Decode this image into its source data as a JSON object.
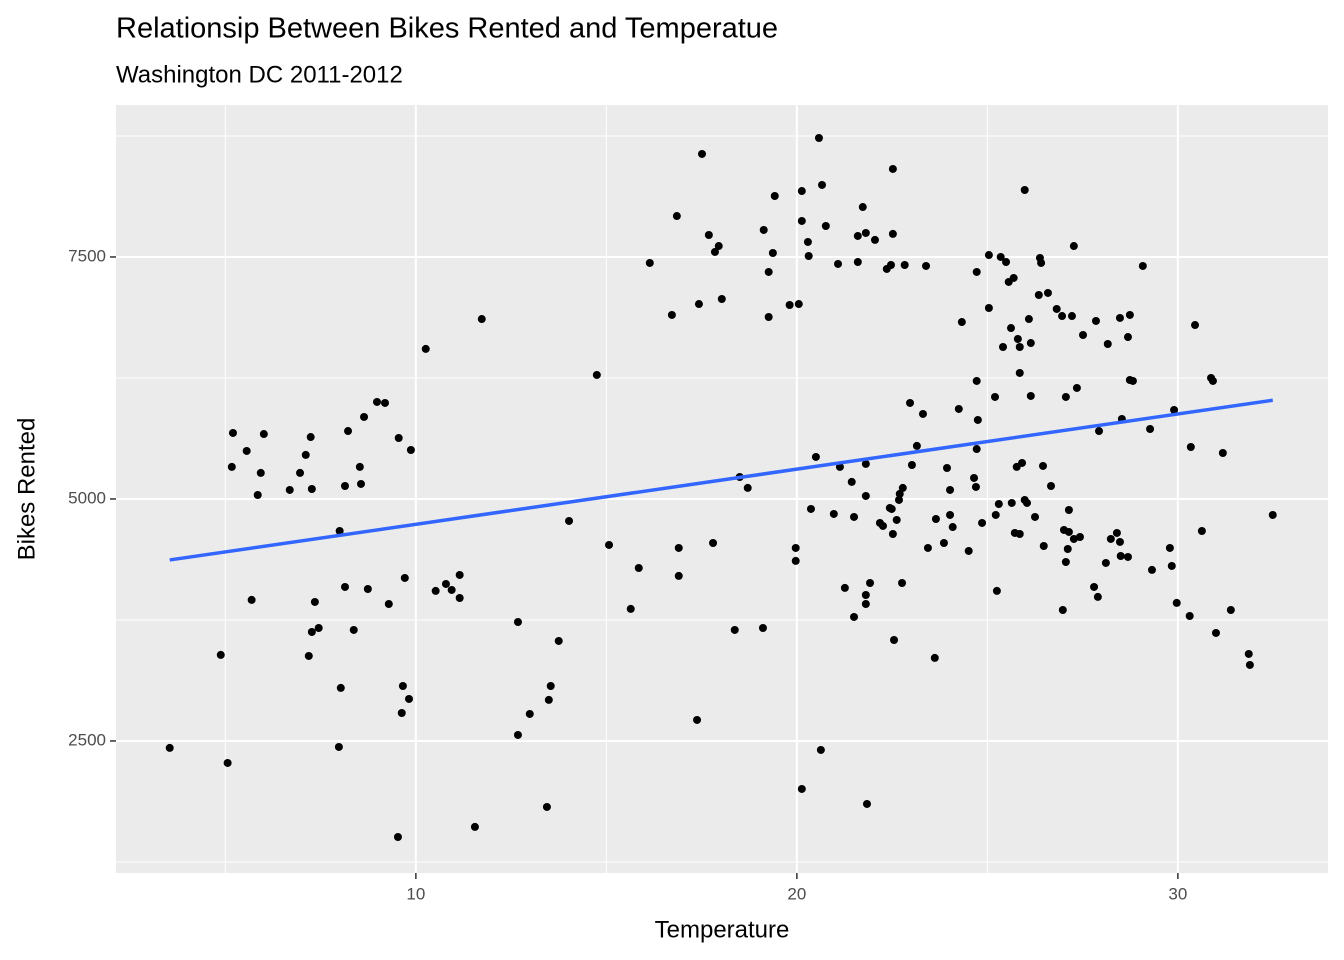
{
  "chart_data": {
    "type": "scatter",
    "title": "Relationsip Between Bikes Rented and Temperatue",
    "subtitle": "Washington DC 2011-2012",
    "x_label": "Temperature",
    "y_label": "Bikes Rented",
    "xlim": [
      2.13,
      33.94
    ],
    "ylim": [
      1136,
      9070
    ],
    "xticks": [
      10,
      20,
      30
    ],
    "yticks": [
      2500,
      5000,
      7500
    ],
    "grid": true,
    "minor_grid": true,
    "color": "#000000",
    "x": [
      3.54,
      4.88,
      5.06,
      5.2,
      5.17,
      5.56,
      5.69,
      5.85,
      5.93,
      6.01,
      6.69,
      6.96,
      7.11,
      7.19,
      7.24,
      7.27,
      7.27,
      7.35,
      7.45,
      8.0,
      8.03,
      7.98,
      8.14,
      8.14,
      8.22,
      8.37,
      8.53,
      8.56,
      8.64,
      8.74,
      8.98,
      9.19,
      9.29,
      9.53,
      9.55,
      9.63,
      9.66,
      9.71,
      9.82,
      9.87,
      10.26,
      10.52,
      10.79,
      10.94,
      11.15,
      11.15,
      11.55,
      11.73,
      12.68,
      12.68,
      12.99,
      13.44,
      13.49,
      13.54,
      13.75,
      14.02,
      14.75,
      15.07,
      15.64,
      15.85,
      16.14,
      16.72,
      16.85,
      16.9,
      16.9,
      17.38,
      17.43,
      17.51,
      17.69,
      17.8,
      17.85,
      17.95,
      18.03,
      18.37,
      18.5,
      18.71,
      19.11,
      19.13,
      19.26,
      19.26,
      19.37,
      19.42,
      19.81,
      19.97,
      19.97,
      20.05,
      20.13,
      20.13,
      20.13,
      20.29,
      20.31,
      20.37,
      20.5,
      20.58,
      20.63,
      20.66,
      20.76,
      20.97,
      21.08,
      21.13,
      21.26,
      21.44,
      21.5,
      21.5,
      21.6,
      21.6,
      21.73,
      21.81,
      21.81,
      21.81,
      21.81,
      21.81,
      21.84,
      21.92,
      22.05,
      22.18,
      22.26,
      22.36,
      22.44,
      22.47,
      22.49,
      22.52,
      22.52,
      22.52,
      22.55,
      22.62,
      22.68,
      22.7,
      22.76,
      22.78,
      22.83,
      22.97,
      23.02,
      23.15,
      23.31,
      23.39,
      23.44,
      23.62,
      23.65,
      23.86,
      23.94,
      24.02,
      24.02,
      24.09,
      24.25,
      24.33,
      24.51,
      24.65,
      24.7,
      24.72,
      24.72,
      24.72,
      24.75,
      24.86,
      25.04,
      25.04,
      25.2,
      25.22,
      25.25,
      25.3,
      25.35,
      25.41,
      25.49,
      25.56,
      25.62,
      25.64,
      25.69,
      25.72,
      25.77,
      25.8,
      25.85,
      25.85,
      25.85,
      25.91,
      25.98,
      25.98,
      26.04,
      26.09,
      26.14,
      26.14,
      26.25,
      26.35,
      26.38,
      26.41,
      26.46,
      26.48,
      26.59,
      26.67,
      26.82,
      26.96,
      26.98,
      27.01,
      27.06,
      27.06,
      27.11,
      27.14,
      27.14,
      27.22,
      27.27,
      27.27,
      27.35,
      27.43,
      27.51,
      27.8,
      27.85,
      27.9,
      27.93,
      28.11,
      28.16,
      28.24,
      28.4,
      28.48,
      28.48,
      28.5,
      28.53,
      28.69,
      28.69,
      28.74,
      28.74,
      28.82,
      29.08,
      29.27,
      29.32,
      29.79,
      29.84,
      29.9,
      29.97,
      30.31,
      30.34,
      30.45,
      30.63,
      30.87,
      30.92,
      31.0,
      31.18,
      31.39,
      31.86,
      31.89,
      32.49
    ],
    "y": [
      2428,
      3389,
      2273,
      5682,
      5331,
      5496,
      3957,
      5041,
      5269,
      5671,
      5093,
      5269,
      5455,
      3378,
      5640,
      5103,
      3626,
      3936,
      3667,
      4669,
      3048,
      2438,
      5134,
      4091,
      5702,
      3647,
      5331,
      5155,
      5847,
      4070,
      6002,
      5992,
      3915,
      1508,
      5630,
      2789,
      3068,
      4184,
      2934,
      5506,
      6550,
      4050,
      4122,
      4060,
      4215,
      3977,
      1612,
      6859,
      3729,
      2562,
      2779,
      1818,
      2924,
      3068,
      3533,
      4773,
      6281,
      4525,
      3864,
      4287,
      7438,
      6901,
      7923,
      4494,
      4205,
      2717,
      7014,
      8564,
      7727,
      4545,
      7552,
      7613,
      7066,
      3647,
      5227,
      5114,
      3667,
      7779,
      7345,
      6880,
      7541,
      8130,
      7004,
      4494,
      4360,
      7014,
      8181,
      7872,
      2004,
      7655,
      7510,
      4897,
      5434,
      8729,
      2407,
      8244,
      7820,
      4845,
      7428,
      5331,
      4081,
      5176,
      3781,
      4814,
      7448,
      7717,
      8016,
      5362,
      5031,
      4008,
      3915,
      7748,
      1849,
      4132,
      7676,
      4752,
      4721,
      7376,
      4907,
      7417,
      4897,
      8409,
      7738,
      4638,
      3543,
      4783,
      4990,
      5052,
      4132,
      5114,
      7417,
      5992,
      5351,
      5548,
      5878,
      7407,
      4494,
      3358,
      4793,
      4545,
      5320,
      5093,
      4835,
      4710,
      5930,
      6828,
      4463,
      5217,
      5124,
      6219,
      7345,
      5516,
      5816,
      4752,
      6973,
      7520,
      6054,
      4835,
      4050,
      4948,
      7500,
      6570,
      7448,
      7242,
      6766,
      4959,
      7283,
      4649,
      5331,
      6653,
      6302,
      4638,
      6570,
      5372,
      4990,
      8192,
      4959,
      6859,
      6611,
      6064,
      4814,
      7107,
      7490,
      7438,
      5341,
      4514,
      7128,
      5134,
      6963,
      6890,
      3853,
      4680,
      6054,
      4349,
      4483,
      4886,
      4659,
      6890,
      7613,
      4587,
      6147,
      4607,
      6694,
      4091,
      6839,
      3988,
      5702,
      4339,
      6601,
      4587,
      4649,
      4556,
      6870,
      4411,
      5826,
      4401,
      6673,
      6901,
      6229,
      6219,
      7407,
      5723,
      4267,
      4494,
      4308,
      5919,
      3926,
      3791,
      5537,
      6797,
      4669,
      6250,
      6219,
      3616,
      5475,
      3853,
      3399,
      3285,
      4835
    ],
    "trend_line": {
      "x": [
        3.54,
        32.49
      ],
      "y": [
        4370,
        6020
      ],
      "color": "#3366FF"
    }
  }
}
